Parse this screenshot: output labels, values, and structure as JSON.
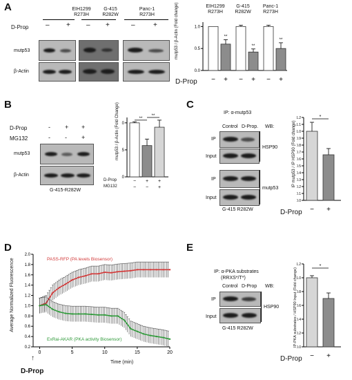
{
  "panels": {
    "A": {
      "label": "A",
      "cell_lines": [
        {
          "name": "EIH1299",
          "mutation": "R273H"
        },
        {
          "name": "G-415",
          "mutation": "R282W"
        },
        {
          "name": "Panc-1",
          "mutation": "R273H"
        }
      ],
      "treatment_label": "D-Prop",
      "minus": "–",
      "plus": "+",
      "rows": [
        "mutp53",
        "β-Actin"
      ],
      "chart_ylabel": "mutp53 / β-Actin (Fold change)",
      "chart_xlabel": "D-Prop",
      "chart_yticks": [
        "0.0",
        "0.5",
        "1.0"
      ],
      "signif": [
        "**",
        "**",
        "**"
      ]
    },
    "B": {
      "label": "B",
      "treatments": [
        "D-Prop",
        "MG132"
      ],
      "lane_signs": [
        [
          "-",
          "+",
          "+"
        ],
        [
          "-",
          "-",
          "+"
        ]
      ],
      "rows": [
        "mutp53",
        "β-Actin"
      ],
      "cell_line": "G-415-R282W",
      "chart_ylabel": "mutp53 / β-Actin (Fold Change)",
      "chart_yticks": [
        "0.0",
        "0.5",
        "1.0"
      ],
      "signif": [
        "**",
        "**"
      ],
      "chart_rows": [
        {
          "name": "D-Prop",
          "signs": [
            "−",
            "+",
            "+"
          ]
        },
        {
          "name": "MG132",
          "signs": [
            "−",
            "−",
            "+"
          ]
        }
      ]
    },
    "C": {
      "label": "C",
      "ip_header": "IP: α-mutp53",
      "columns": [
        "Control",
        "D-Prop."
      ],
      "wb_label": "WB:",
      "rows": [
        "IP",
        "Input",
        "IP",
        "Input"
      ],
      "targets": [
        "HSP90",
        "mutp53"
      ],
      "cell_line": "G-415  R282W",
      "chart_ylabel": "IP mutp53 / IP HSP90 (Fold change)",
      "chart_yticks": [
        "0.0",
        "0.1",
        "0.2",
        "0.3",
        "0.4",
        "0.5",
        "0.6",
        "0.7",
        "0.8",
        "0.9",
        "1.0",
        "1.1",
        "1.2"
      ],
      "chart_xlabel": "D-Prop",
      "signif": "*",
      "minus": "−",
      "plus": "+"
    },
    "D": {
      "label": "D",
      "ylabel": "Average Normalized Fluorescence",
      "xlabel": "Time (min)",
      "legend_red": "PASS-RFP (PA levels Biosensor)",
      "legend_green": "ExRai-AKAR (PKA activity Biosensor)",
      "arrow_label": "D-Prop",
      "yticks": [
        "0.2",
        "0.4",
        "0.6",
        "0.8",
        "1.0",
        "1.2",
        "1.4",
        "1.6",
        "1.8",
        "2.0"
      ],
      "xticks": [
        "0",
        "5",
        "10",
        "15",
        "20"
      ]
    },
    "E": {
      "label": "E",
      "ip_header_1": "IP: α-PKA substrates",
      "ip_header_2": "(RRXS*/T*)",
      "columns": [
        "Control",
        "D-Prop"
      ],
      "wb_label": "WB:",
      "rows": [
        "IP",
        "Input"
      ],
      "target": "HSP90",
      "cell_line": "G-415  R282W",
      "chart_ylabel": "IP-PKA substrates / HSP90 Input (Fold change)",
      "chart_yticks": [
        "0.0",
        "0.2",
        "0.4",
        "0.6",
        "0.8",
        "1.0",
        "1.2"
      ],
      "chart_xlabel": "D-Prop",
      "signif": "*",
      "minus": "−",
      "plus": "+"
    }
  },
  "colors": {
    "open_bar": "#ffffff",
    "gray_bar": "#8c8c8c",
    "light_bar": "#d6d6d6",
    "red_trace": "#d23a3a",
    "green_trace": "#2f9a3a",
    "legend_red": "#d23a3a",
    "legend_green": "#2f9a3a"
  },
  "chart_data": [
    {
      "id": "A",
      "type": "bar",
      "categories": [
        "EIH1299 −",
        "EIH1299 +",
        "G-415 −",
        "G-415 +",
        "Panc-1 −",
        "Panc-1 +"
      ],
      "values": [
        1.0,
        0.6,
        1.0,
        0.42,
        1.0,
        0.5
      ],
      "errors": [
        0.0,
        0.1,
        0.03,
        0.07,
        0.03,
        0.13
      ],
      "ylim": [
        0,
        1.1
      ],
      "ylabel": "mutp53 / β-Actin (Fold change)",
      "xlabel": "D-Prop"
    },
    {
      "id": "B",
      "type": "bar",
      "categories": [
        "−/−",
        "+/−",
        "+/+"
      ],
      "values": [
        1.0,
        0.58,
        0.92
      ],
      "errors": [
        0.02,
        0.12,
        0.13
      ],
      "ylim": [
        0,
        1.1
      ],
      "ylabel": "mutp53 / β-Actin (Fold Change)"
    },
    {
      "id": "C",
      "type": "bar",
      "categories": [
        "−",
        "+"
      ],
      "values": [
        1.0,
        0.66
      ],
      "errors": [
        0.13,
        0.09
      ],
      "ylim": [
        0,
        1.2
      ],
      "ylabel": "IP mutp53 / IP HSP90 (Fold change)",
      "xlabel": "D-Prop"
    },
    {
      "id": "D",
      "type": "line",
      "xlim": [
        -1,
        20
      ],
      "ylim": [
        0.2,
        2.0
      ],
      "series": [
        {
          "name": "PASS-RFP (PA levels Biosensor)",
          "x": [
            0,
            1,
            2,
            3,
            4,
            5,
            6,
            7,
            8,
            9,
            10,
            11,
            12,
            13,
            14,
            15,
            16,
            17,
            18,
            19,
            20
          ],
          "y": [
            1.0,
            1.05,
            1.25,
            1.35,
            1.42,
            1.5,
            1.55,
            1.58,
            1.62,
            1.62,
            1.65,
            1.64,
            1.66,
            1.67,
            1.68,
            1.7,
            1.7,
            1.7,
            1.7,
            1.7,
            1.7
          ],
          "err": 0.15
        },
        {
          "name": "ExRai-AKAR (PKA activity Biosensor)",
          "x": [
            0,
            1,
            2,
            3,
            4,
            5,
            6,
            7,
            8,
            9,
            10,
            11,
            12,
            13,
            14,
            15,
            16,
            17,
            18,
            19,
            20
          ],
          "y": [
            1.0,
            1.02,
            0.93,
            0.88,
            0.85,
            0.84,
            0.84,
            0.84,
            0.83,
            0.82,
            0.82,
            0.8,
            0.8,
            0.72,
            0.55,
            0.5,
            0.45,
            0.42,
            0.4,
            0.38,
            0.35
          ],
          "err": 0.15
        }
      ]
    },
    {
      "id": "E",
      "type": "bar",
      "categories": [
        "−",
        "+"
      ],
      "values": [
        1.0,
        0.7
      ],
      "errors": [
        0.03,
        0.08
      ],
      "ylim": [
        0,
        1.2
      ],
      "ylabel": "IP-PKA substrates / HSP90 Input (Fold change)",
      "xlabel": "D-Prop"
    }
  ]
}
